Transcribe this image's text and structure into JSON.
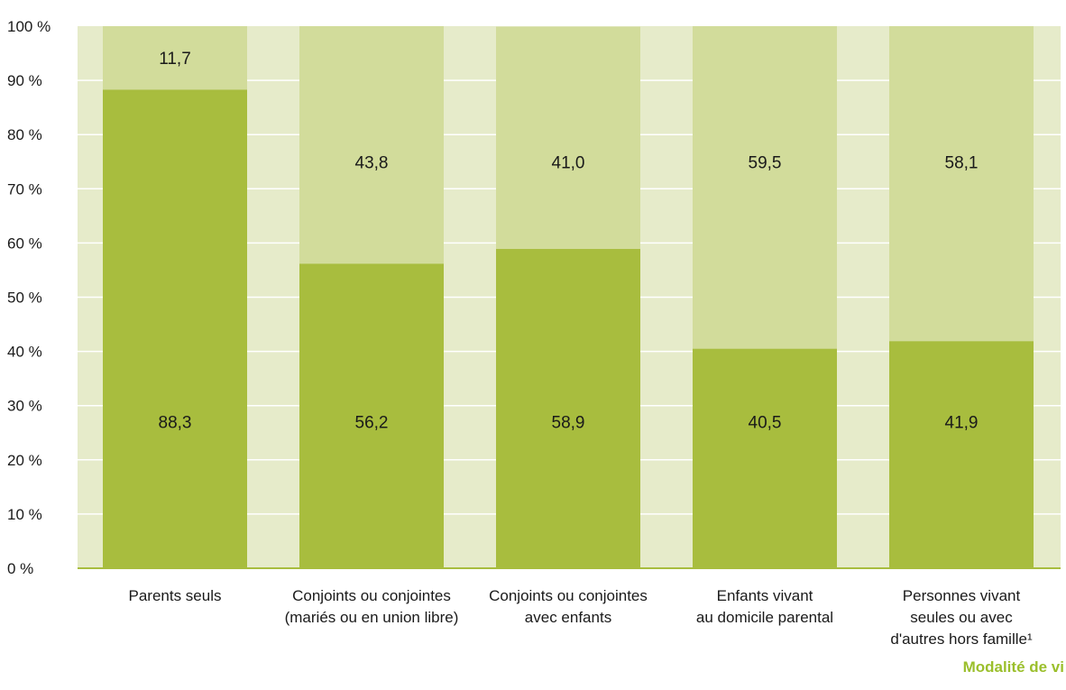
{
  "chart_data": {
    "type": "bar",
    "stacked": true,
    "orientation": "vertical",
    "title": "",
    "xlabel": "Modalité de vi",
    "ylabel": "",
    "ylim": [
      0,
      100
    ],
    "y_tick_labels": [
      "0 %",
      "10 %",
      "20 %",
      "30 %",
      "40 %",
      "50 %",
      "60 %",
      "70 %",
      "80 %",
      "90 %",
      "100 %"
    ],
    "y_ticks": [
      0,
      10,
      20,
      30,
      40,
      50,
      60,
      70,
      80,
      90,
      100
    ],
    "grid": true,
    "legend": "none",
    "categories": [
      "Parents seuls",
      "Conjoints ou conjointes (mariés ou en union libre)",
      "Conjoints ou conjointes avec enfants",
      "Enfants vivant au domicile parental",
      "Personnes vivant seules ou avec d'autres hors famille¹"
    ],
    "category_label_lines": [
      [
        "Parents seuls"
      ],
      [
        "Conjoints ou conjointes",
        "(mariés ou en union libre)"
      ],
      [
        "Conjoints ou conjointes",
        "avec enfants"
      ],
      [
        "Enfants vivant",
        "au domicile parental"
      ],
      [
        "Personnes vivant",
        "seules ou avec",
        "d'autres hors famille¹"
      ]
    ],
    "series": [
      {
        "values": [
          88.3,
          56.2,
          58.9,
          40.5,
          41.9
        ],
        "labels": [
          "88,3",
          "56,2",
          "58,9",
          "40,5",
          "41,9"
        ],
        "color": "#a8bd3e"
      },
      {
        "values": [
          11.7,
          43.8,
          41.0,
          59.5,
          58.1
        ],
        "labels": [
          "11,7",
          "43,8",
          "41,0",
          "59,5",
          "58,1"
        ],
        "color": "#d2dc9b"
      }
    ]
  },
  "colors": {
    "plot_background": "#e6ebca",
    "gridline": "#ffffff",
    "baseline": "#a8bd3e",
    "axis_title": "#9bbf2c"
  }
}
